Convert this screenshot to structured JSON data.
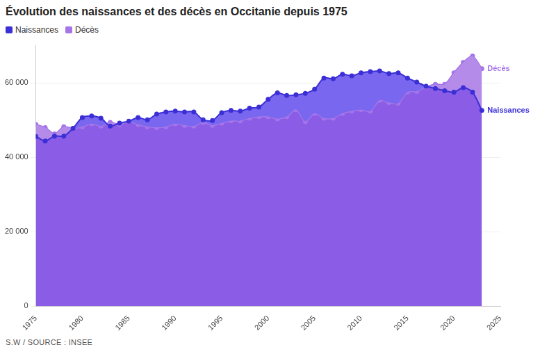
{
  "chart_data": {
    "type": "area",
    "title": "Évolution des naissances et des décès en Occitanie depuis 1975",
    "source": "S.W / SOURCE : INSEE",
    "x": [
      1975,
      1976,
      1977,
      1978,
      1979,
      1980,
      1981,
      1982,
      1983,
      1984,
      1985,
      1986,
      1987,
      1988,
      1989,
      1990,
      1991,
      1992,
      1993,
      1994,
      1995,
      1996,
      1997,
      1998,
      1999,
      2000,
      2001,
      2002,
      2003,
      2004,
      2005,
      2006,
      2007,
      2008,
      2009,
      2010,
      2011,
      2012,
      2013,
      2014,
      2015,
      2016,
      2017,
      2018,
      2019,
      2020,
      2021,
      2022,
      2023
    ],
    "series": [
      {
        "name": "Naissances",
        "color": "#3b2fd6",
        "values": [
          45600,
          44400,
          45700,
          45700,
          47800,
          50700,
          51100,
          50500,
          48400,
          49200,
          49700,
          50700,
          50100,
          51600,
          52200,
          52400,
          52200,
          52200,
          50100,
          49900,
          52000,
          52600,
          52400,
          53200,
          53500,
          55600,
          57300,
          56600,
          56800,
          57200,
          58300,
          61300,
          61100,
          62300,
          61900,
          62700,
          63000,
          63200,
          62500,
          62700,
          61300,
          60200,
          59100,
          58500,
          57900,
          57500,
          58700,
          57500,
          52600
        ]
      },
      {
        "name": "Décès",
        "color": "#a575e8",
        "values": [
          48800,
          48000,
          46300,
          48200,
          47800,
          48200,
          49000,
          48400,
          49400,
          48800,
          49600,
          48800,
          48200,
          48000,
          48200,
          49000,
          48600,
          48400,
          49400,
          48600,
          49200,
          49800,
          49800,
          50500,
          50900,
          50900,
          50300,
          50900,
          52800,
          49600,
          51800,
          50500,
          50500,
          51800,
          52400,
          52800,
          52400,
          55300,
          54700,
          54500,
          57500,
          57700,
          58900,
          59600,
          59600,
          62700,
          65500,
          67200,
          63800
        ]
      }
    ],
    "xlim": [
      1975,
      2025
    ],
    "xticks": [
      1975,
      1980,
      1985,
      1990,
      1995,
      2000,
      2005,
      2010,
      2015,
      2020,
      2025
    ],
    "ylim": [
      0,
      70000
    ],
    "yticks": [
      0,
      {
        "value": 20000,
        "label": "20 000"
      },
      {
        "value": 40000,
        "label": "40 000"
      },
      {
        "value": 60000,
        "label": "60 000"
      }
    ],
    "grid": true,
    "legend": "top-left",
    "marker": "circle",
    "stacked": false
  }
}
